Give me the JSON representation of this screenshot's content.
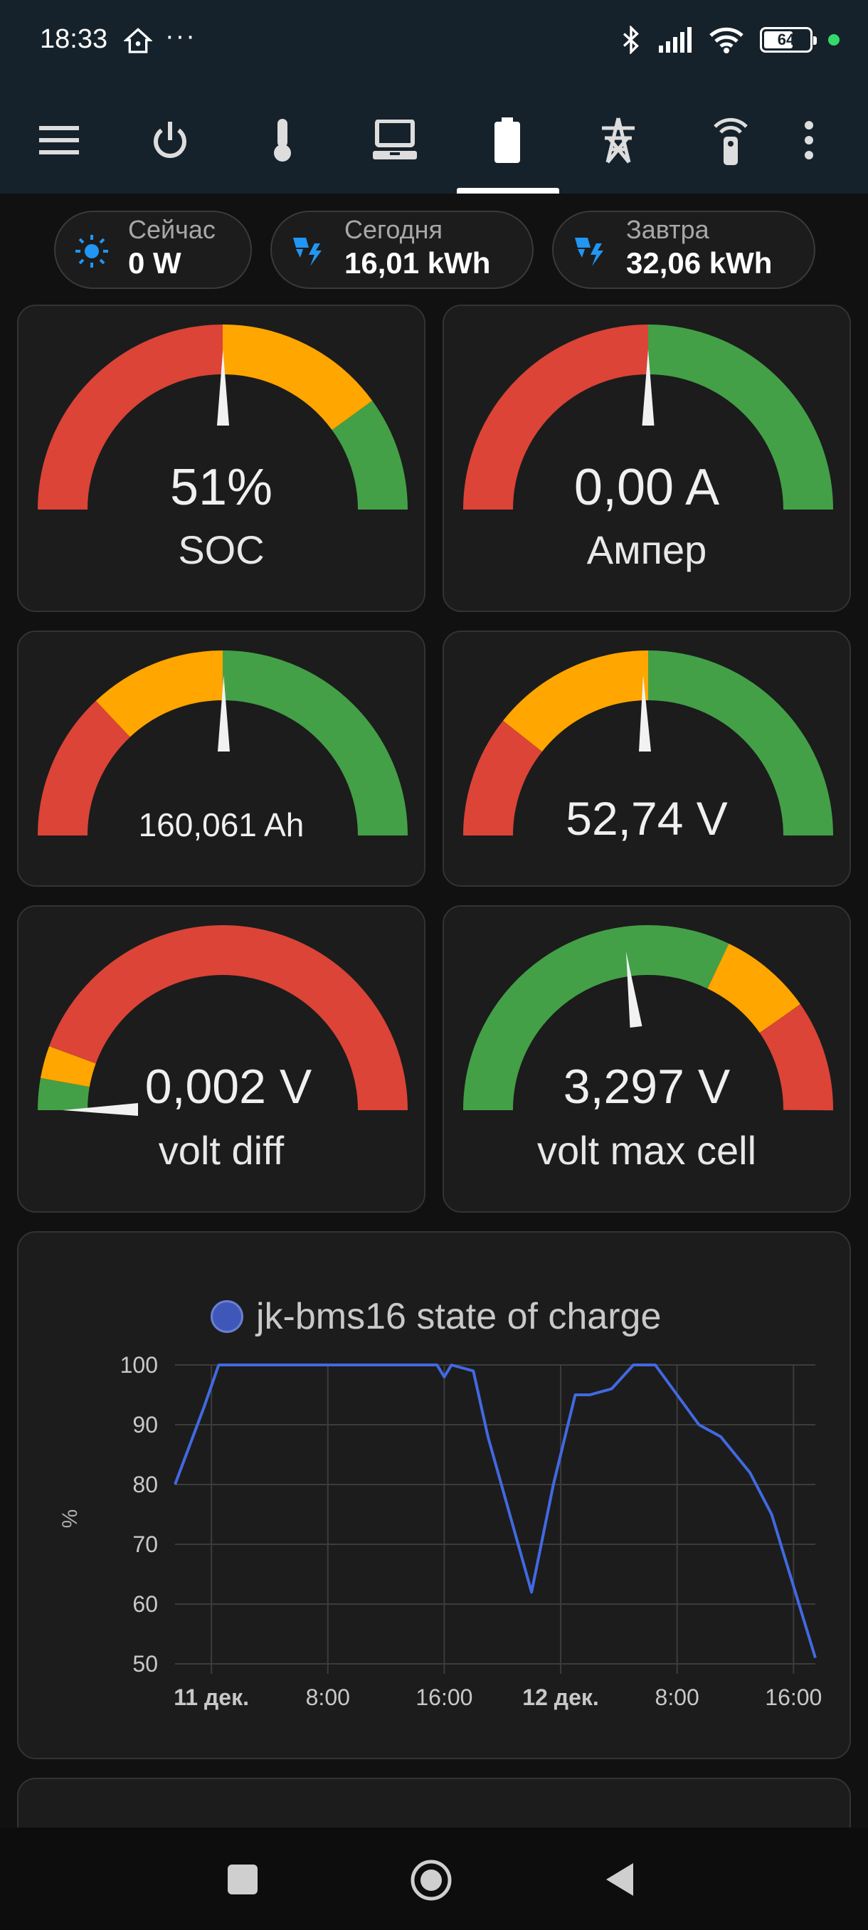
{
  "status": {
    "time": "18:33",
    "battery": "64",
    "battery_level": 0.64
  },
  "toolbar": {
    "items": [
      "menu-icon",
      "power-icon",
      "thermometer-icon",
      "laptop-icon",
      "battery-icon",
      "power-tower-icon",
      "remote-icon",
      "more-vert-icon"
    ],
    "active_index": 4
  },
  "chips": [
    {
      "label": "Сейчас",
      "value": "0 W",
      "icon": "sun-icon"
    },
    {
      "label": "Сегодня",
      "value": "16,01 kWh",
      "icon": "solar-power-icon"
    },
    {
      "label": "Завтра",
      "value": "32,06 kWh",
      "icon": "solar-power-icon"
    }
  ],
  "gauges": [
    {
      "value": "51%",
      "name": "SOC",
      "level": 0.51
    },
    {
      "value": "0,00 A",
      "name": "Ампер",
      "level": 0.5
    },
    {
      "value": "160,061 Ah",
      "name": "",
      "level": 0.51
    },
    {
      "value": "52,74 V",
      "name": "",
      "level": 0.48
    },
    {
      "value": "0,002 V",
      "name": "volt diff",
      "level": 0.0
    },
    {
      "value": "3,297 V",
      "name": "volt max cell",
      "level": 0.45
    }
  ],
  "colors": {
    "red": "#db4437",
    "orange": "#ffa600",
    "green": "#43a047",
    "line": "#4169e1"
  },
  "chart_data": {
    "type": "line",
    "series": [
      {
        "name": "jk-bms16 state of charge",
        "x": [
          "10 дек. 21:30",
          "10 дек. 23:30",
          "11 дек. 00:30",
          "11 дек. 15:30",
          "11 дек. 16:00",
          "11 дек. 16:30",
          "11 дек. 18:00",
          "11 дек. 19:00",
          "11 дек. 20:30",
          "11 дек. 22:00",
          "11 дек. 23:30",
          "12 дек. 01:00",
          "12 дек. 02:00",
          "12 дек. 03:30",
          "12 дек. 05:00",
          "12 дек. 06:30",
          "12 дек. 08:00",
          "12 дек. 09:30",
          "12 дек. 11:00",
          "12 дек. 13:00",
          "12 дек. 14:30",
          "12 дек. 16:00",
          "12 дек. 17:30"
        ],
        "values": [
          80,
          93,
          100,
          100,
          98,
          100,
          99,
          88,
          75,
          62,
          80,
          95,
          95,
          96,
          100,
          100,
          95,
          90,
          88,
          82,
          75,
          63,
          51
        ]
      }
    ],
    "x_ticks": [
      "11 дек.",
      "8:00",
      "16:00",
      "12 дек.",
      "8:00",
      "16:00"
    ],
    "y_ticks": [
      "100",
      "90",
      "80",
      "70",
      "60",
      "50"
    ],
    "ylabel": "%",
    "ylim": [
      50,
      100
    ]
  }
}
